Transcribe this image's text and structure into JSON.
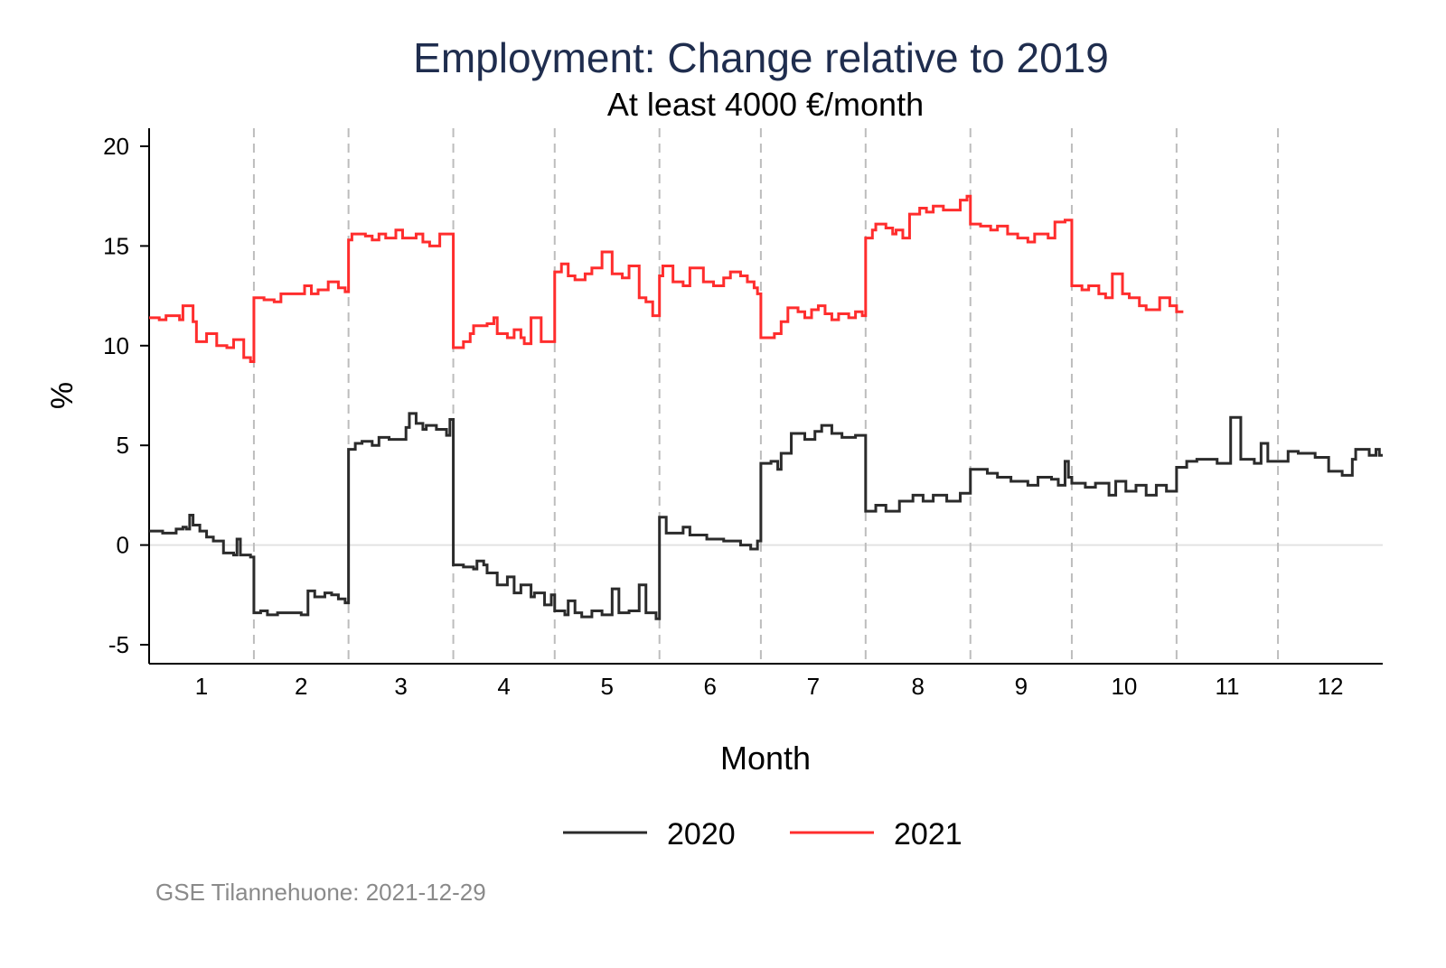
{
  "chart_data": {
    "type": "line",
    "step": true,
    "title": "Employment: Change relative to 2019",
    "subtitle": "At least 4000 €/month",
    "xlabel": "Month",
    "ylabel": "%",
    "ylim": [
      -5,
      20
    ],
    "yticks": [
      -5,
      0,
      5,
      10,
      15,
      20
    ],
    "ytick_labels": [
      "-5",
      "0",
      "5",
      "10",
      "15",
      "20"
    ],
    "xlim_days": [
      0,
      365
    ],
    "month_boundaries_days": [
      31,
      59,
      90,
      120,
      151,
      181,
      212,
      243,
      273,
      304,
      334
    ],
    "xtick_labels": [
      "1",
      "2",
      "3",
      "4",
      "5",
      "6",
      "7",
      "8",
      "9",
      "10",
      "11",
      "12"
    ],
    "legend_position": "bottom",
    "note": "GSE Tilannehuone: 2021-12-29",
    "series": [
      {
        "name": "2020",
        "color": "#2b2b2b",
        "end_day": 365,
        "points": [
          [
            0,
            0.7
          ],
          [
            4,
            0.6
          ],
          [
            8,
            0.8
          ],
          [
            10,
            0.9
          ],
          [
            11,
            0.8
          ],
          [
            12,
            1.5
          ],
          [
            13,
            1.0
          ],
          [
            15,
            0.7
          ],
          [
            17,
            0.4
          ],
          [
            19,
            0.2
          ],
          [
            22,
            -0.4
          ],
          [
            25,
            -0.5
          ],
          [
            26,
            0.3
          ],
          [
            27,
            -0.5
          ],
          [
            30,
            -0.6
          ],
          [
            31,
            -3.4
          ],
          [
            33,
            -3.3
          ],
          [
            35,
            -3.5
          ],
          [
            38,
            -3.4
          ],
          [
            45,
            -3.5
          ],
          [
            47,
            -2.3
          ],
          [
            49,
            -2.6
          ],
          [
            52,
            -2.4
          ],
          [
            54,
            -2.5
          ],
          [
            56,
            -2.7
          ],
          [
            58,
            -2.9
          ],
          [
            59,
            4.8
          ],
          [
            61,
            5.1
          ],
          [
            63,
            5.2
          ],
          [
            66,
            5.0
          ],
          [
            68,
            5.4
          ],
          [
            71,
            5.3
          ],
          [
            76,
            5.9
          ],
          [
            77,
            6.6
          ],
          [
            79,
            6.1
          ],
          [
            81,
            5.8
          ],
          [
            82,
            6.0
          ],
          [
            85,
            5.8
          ],
          [
            88,
            5.5
          ],
          [
            89,
            6.3
          ],
          [
            90,
            -1.0
          ],
          [
            93,
            -1.1
          ],
          [
            96,
            -1.2
          ],
          [
            97,
            -0.8
          ],
          [
            99,
            -1.0
          ],
          [
            100,
            -1.4
          ],
          [
            103,
            -2.0
          ],
          [
            106,
            -1.6
          ],
          [
            108,
            -2.4
          ],
          [
            110,
            -2.0
          ],
          [
            113,
            -2.6
          ],
          [
            114,
            -2.4
          ],
          [
            117,
            -3.0
          ],
          [
            119,
            -2.5
          ],
          [
            120,
            -3.3
          ],
          [
            123,
            -3.5
          ],
          [
            124,
            -2.8
          ],
          [
            126,
            -3.4
          ],
          [
            128,
            -3.6
          ],
          [
            131,
            -3.3
          ],
          [
            134,
            -3.5
          ],
          [
            137,
            -2.2
          ],
          [
            139,
            -3.4
          ],
          [
            142,
            -3.3
          ],
          [
            145,
            -2.0
          ],
          [
            147,
            -3.4
          ],
          [
            150,
            -3.7
          ],
          [
            151,
            1.4
          ],
          [
            153,
            0.6
          ],
          [
            158,
            0.9
          ],
          [
            160,
            0.5
          ],
          [
            165,
            0.3
          ],
          [
            170,
            0.2
          ],
          [
            175,
            0.0
          ],
          [
            178,
            -0.2
          ],
          [
            180,
            0.2
          ],
          [
            181,
            4.1
          ],
          [
            184,
            4.2
          ],
          [
            186,
            3.8
          ],
          [
            187,
            4.6
          ],
          [
            190,
            5.6
          ],
          [
            194,
            5.3
          ],
          [
            197,
            5.7
          ],
          [
            199,
            6.0
          ],
          [
            202,
            5.6
          ],
          [
            205,
            5.4
          ],
          [
            209,
            5.5
          ],
          [
            212,
            1.7
          ],
          [
            215,
            2.0
          ],
          [
            218,
            1.7
          ],
          [
            222,
            2.2
          ],
          [
            226,
            2.5
          ],
          [
            229,
            2.2
          ],
          [
            232,
            2.5
          ],
          [
            236,
            2.2
          ],
          [
            240,
            2.6
          ],
          [
            243,
            3.8
          ],
          [
            248,
            3.6
          ],
          [
            251,
            3.4
          ],
          [
            255,
            3.2
          ],
          [
            260,
            3.0
          ],
          [
            263,
            3.4
          ],
          [
            267,
            3.3
          ],
          [
            269,
            3.0
          ],
          [
            271,
            4.2
          ],
          [
            272,
            3.4
          ],
          [
            273,
            3.1
          ],
          [
            277,
            2.9
          ],
          [
            280,
            3.1
          ],
          [
            284,
            2.5
          ],
          [
            286,
            3.2
          ],
          [
            289,
            2.7
          ],
          [
            292,
            3.0
          ],
          [
            295,
            2.5
          ],
          [
            298,
            3.0
          ],
          [
            301,
            2.7
          ],
          [
            304,
            3.9
          ],
          [
            307,
            4.2
          ],
          [
            310,
            4.3
          ],
          [
            316,
            4.1
          ],
          [
            320,
            6.4
          ],
          [
            323,
            4.3
          ],
          [
            327,
            4.1
          ],
          [
            329,
            5.1
          ],
          [
            331,
            4.2
          ],
          [
            334,
            4.2
          ],
          [
            337,
            4.7
          ],
          [
            340,
            4.6
          ],
          [
            345,
            4.4
          ],
          [
            349,
            3.7
          ],
          [
            353,
            3.5
          ],
          [
            356,
            4.3
          ],
          [
            357,
            4.8
          ],
          [
            361,
            4.5
          ],
          [
            363,
            4.8
          ],
          [
            364,
            4.5
          ]
        ]
      },
      {
        "name": "2021",
        "color": "#ff2d2d",
        "end_day": 306,
        "points": [
          [
            0,
            11.4
          ],
          [
            3,
            11.3
          ],
          [
            5,
            11.5
          ],
          [
            9,
            11.3
          ],
          [
            10,
            12.0
          ],
          [
            13,
            11.2
          ],
          [
            14,
            10.2
          ],
          [
            17,
            10.6
          ],
          [
            20,
            10.0
          ],
          [
            23,
            9.9
          ],
          [
            25,
            10.3
          ],
          [
            28,
            9.4
          ],
          [
            30,
            9.2
          ],
          [
            31,
            12.4
          ],
          [
            34,
            12.3
          ],
          [
            37,
            12.2
          ],
          [
            39,
            12.6
          ],
          [
            43,
            12.6
          ],
          [
            46,
            13.0
          ],
          [
            48,
            12.6
          ],
          [
            50,
            12.8
          ],
          [
            53,
            13.2
          ],
          [
            56,
            12.9
          ],
          [
            58,
            12.7
          ],
          [
            59,
            15.3
          ],
          [
            60,
            15.6
          ],
          [
            64,
            15.5
          ],
          [
            66,
            15.3
          ],
          [
            68,
            15.6
          ],
          [
            70,
            15.4
          ],
          [
            73,
            15.8
          ],
          [
            75,
            15.4
          ],
          [
            79,
            15.6
          ],
          [
            81,
            15.2
          ],
          [
            83,
            15.0
          ],
          [
            86,
            15.6
          ],
          [
            90,
            9.9
          ],
          [
            93,
            10.2
          ],
          [
            95,
            10.6
          ],
          [
            96,
            11.0
          ],
          [
            100,
            11.1
          ],
          [
            102,
            11.4
          ],
          [
            103,
            10.6
          ],
          [
            106,
            10.4
          ],
          [
            108,
            10.8
          ],
          [
            110,
            10.4
          ],
          [
            111,
            10.1
          ],
          [
            113,
            11.4
          ],
          [
            116,
            10.2
          ],
          [
            120,
            13.7
          ],
          [
            122,
            14.1
          ],
          [
            124,
            13.5
          ],
          [
            126,
            13.3
          ],
          [
            129,
            13.6
          ],
          [
            131,
            13.9
          ],
          [
            134,
            14.7
          ],
          [
            137,
            13.6
          ],
          [
            140,
            13.4
          ],
          [
            142,
            14.0
          ],
          [
            145,
            12.4
          ],
          [
            147,
            12.2
          ],
          [
            149,
            11.5
          ],
          [
            151,
            13.5
          ],
          [
            152,
            14.0
          ],
          [
            155,
            13.2
          ],
          [
            158,
            13.0
          ],
          [
            160,
            13.9
          ],
          [
            164,
            13.2
          ],
          [
            167,
            13.0
          ],
          [
            170,
            13.4
          ],
          [
            172,
            13.7
          ],
          [
            175,
            13.5
          ],
          [
            177,
            13.2
          ],
          [
            179,
            12.9
          ],
          [
            180,
            12.6
          ],
          [
            181,
            10.4
          ],
          [
            185,
            10.6
          ],
          [
            187,
            11.2
          ],
          [
            189,
            11.9
          ],
          [
            192,
            11.7
          ],
          [
            194,
            11.4
          ],
          [
            196,
            11.8
          ],
          [
            198,
            12.0
          ],
          [
            200,
            11.6
          ],
          [
            202,
            11.3
          ],
          [
            204,
            11.6
          ],
          [
            207,
            11.4
          ],
          [
            209,
            11.7
          ],
          [
            211,
            11.5
          ],
          [
            212,
            15.4
          ],
          [
            214,
            15.8
          ],
          [
            215,
            16.1
          ],
          [
            218,
            15.9
          ],
          [
            220,
            15.6
          ],
          [
            221,
            15.8
          ],
          [
            223,
            15.4
          ],
          [
            225,
            16.6
          ],
          [
            228,
            16.9
          ],
          [
            230,
            16.7
          ],
          [
            232,
            17.0
          ],
          [
            235,
            16.8
          ],
          [
            240,
            17.3
          ],
          [
            242,
            17.5
          ],
          [
            243,
            16.1
          ],
          [
            246,
            16.0
          ],
          [
            249,
            15.8
          ],
          [
            251,
            16.0
          ],
          [
            254,
            15.6
          ],
          [
            257,
            15.4
          ],
          [
            260,
            15.2
          ],
          [
            262,
            15.6
          ],
          [
            266,
            15.4
          ],
          [
            268,
            16.2
          ],
          [
            271,
            16.3
          ],
          [
            273,
            13.0
          ],
          [
            276,
            12.8
          ],
          [
            278,
            13.0
          ],
          [
            281,
            12.6
          ],
          [
            283,
            12.4
          ],
          [
            285,
            13.6
          ],
          [
            288,
            12.6
          ],
          [
            290,
            12.4
          ],
          [
            293,
            12.0
          ],
          [
            295,
            11.8
          ],
          [
            299,
            12.4
          ],
          [
            302,
            12.0
          ],
          [
            304,
            11.7
          ]
        ]
      }
    ]
  }
}
